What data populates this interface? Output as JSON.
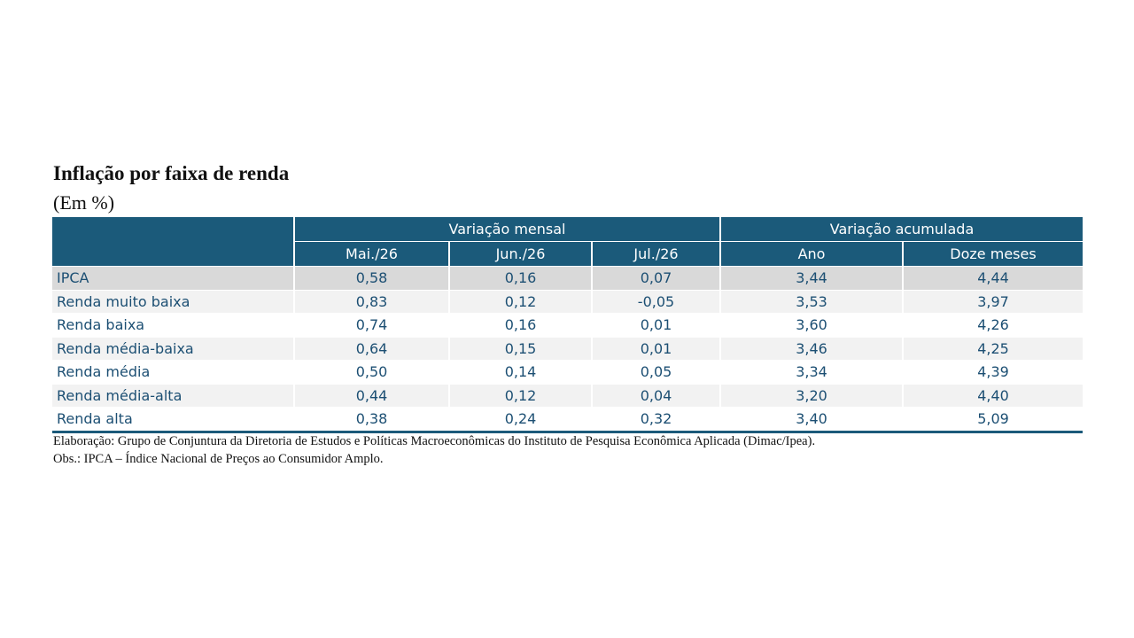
{
  "title": "Inflação por faixa de renda",
  "subtitle": "(Em %)",
  "table": {
    "group_headers": [
      "Variação mensal",
      "Variação acumulada"
    ],
    "column_headers": [
      "Mai./26",
      "Jun./26",
      "Jul./26",
      "Ano",
      "Doze meses"
    ],
    "rows": [
      [
        "IPCA",
        "0,58",
        "0,16",
        "0,07",
        "3,44",
        "4,44"
      ],
      [
        "Renda muito baixa",
        "0,83",
        "0,12",
        "-0,05",
        "3,53",
        "3,97"
      ],
      [
        "Renda baixa",
        "0,74",
        "0,16",
        "0,01",
        "3,60",
        "4,26"
      ],
      [
        "Renda média-baixa",
        "0,64",
        "0,15",
        "0,01",
        "3,46",
        "4,25"
      ],
      [
        "Renda média",
        "0,50",
        "0,14",
        "0,05",
        "3,34",
        "4,39"
      ],
      [
        "Renda média-alta",
        "0,44",
        "0,12",
        "0,04",
        "3,20",
        "4,40"
      ],
      [
        "Renda alta",
        "0,38",
        "0,24",
        "0,32",
        "3,40",
        "5,09"
      ]
    ]
  },
  "notes": [
    "Elaboração: Grupo de Conjuntura da Diretoria de Estudos e Políticas Macroeconômicas do Instituto de Pesquisa Econômica Aplicada (Dimac/Ipea).",
    "Obs.: IPCA – Índice Nacional de Preços ao Consumidor Amplo."
  ],
  "colors": {
    "header_bg": "#1b5a7a",
    "header_text": "#ffffff",
    "body_text": "#1c4f73",
    "row_highlight": "#d9d9d9",
    "row_stripe": "#f2f2f2"
  }
}
